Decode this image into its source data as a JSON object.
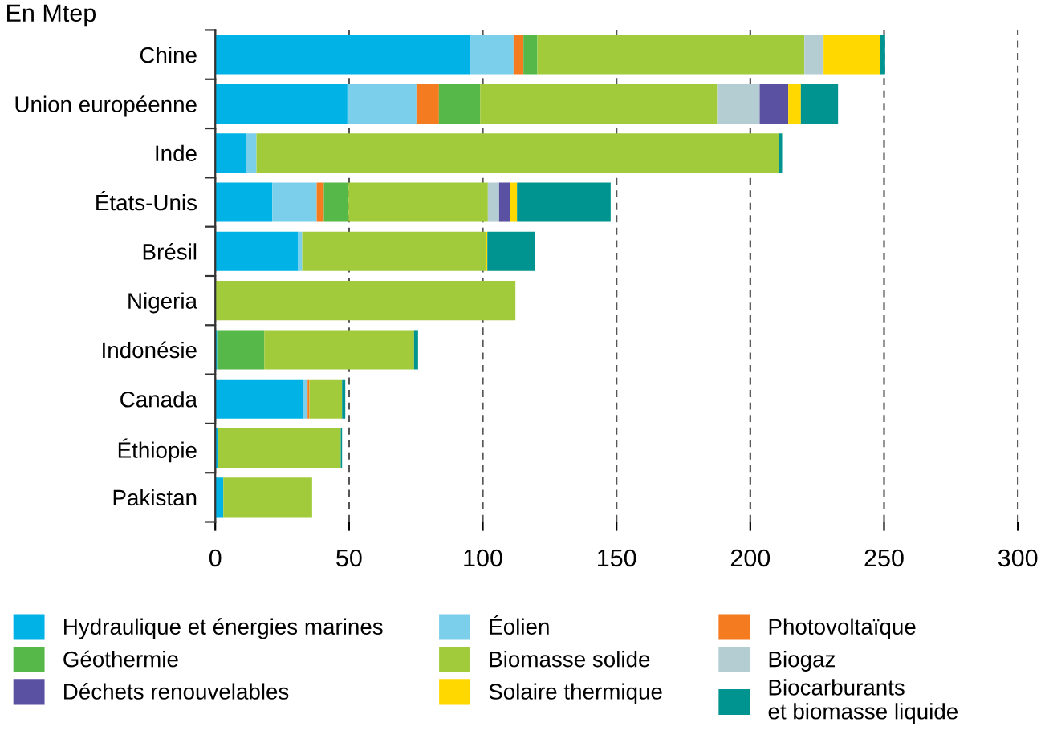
{
  "chart_data": {
    "type": "bar",
    "orientation": "horizontal",
    "stacked": true,
    "title": "En Mtep",
    "categories": [
      "Chine",
      "Union européenne",
      "Inde",
      "États-Unis",
      "Brésil",
      "Nigeria",
      "Indonésie",
      "Canada",
      "Éthiopie",
      "Pakistan"
    ],
    "series": [
      {
        "name": "Hydraulique et énergies marines",
        "color": "#00b2e6",
        "values": [
          95.5,
          49.4,
          11.4,
          21.3,
          31,
          0,
          0.7,
          32.8,
          1,
          3
        ]
      },
      {
        "name": "Éolien",
        "color": "#7ccfea",
        "values": [
          16,
          25.8,
          4,
          16.6,
          1.5,
          0,
          0,
          1.7,
          0,
          0
        ]
      },
      {
        "name": "Photovoltaïque",
        "color": "#f47b20",
        "values": [
          3.7,
          8.4,
          0,
          2.7,
          0,
          0,
          0,
          0.7,
          0,
          0
        ]
      },
      {
        "name": "Géothermie",
        "color": "#55b848",
        "values": [
          5.2,
          15.4,
          0,
          9.2,
          0,
          0,
          17.6,
          0,
          0,
          0
        ]
      },
      {
        "name": "Biomasse solide",
        "color": "#a1cb3a",
        "values": [
          99.8,
          88.6,
          195.3,
          52.1,
          68.7,
          112.2,
          56,
          12.2,
          45.9,
          33.2
        ]
      },
      {
        "name": "Biogaz",
        "color": "#b4cdd3",
        "values": [
          7.2,
          15.9,
          null,
          4.2,
          0,
          0,
          0,
          0,
          0,
          0
        ]
      },
      {
        "name": "Déchets renouvelables",
        "color": "#5b51a2",
        "values": [
          0,
          10.7,
          0,
          4,
          0,
          0,
          0,
          0,
          0,
          0
        ]
      },
      {
        "name": "Solaire thermique",
        "color": "#ffd800",
        "values": [
          21,
          4.7,
          0,
          2.7,
          0.5,
          0,
          0,
          0,
          0,
          0
        ]
      },
      {
        "name": "Biocarburants\net biomasse liquide",
        "color": "#009490",
        "values": [
          2,
          13.9,
          1.2,
          35,
          17.9,
          0,
          1.5,
          1.2,
          0.5,
          0
        ]
      }
    ],
    "xlim": [
      0,
      300
    ],
    "xticks": [
      0,
      50,
      100,
      150,
      200,
      250,
      300
    ],
    "grid": "x",
    "legend": "bottom"
  }
}
